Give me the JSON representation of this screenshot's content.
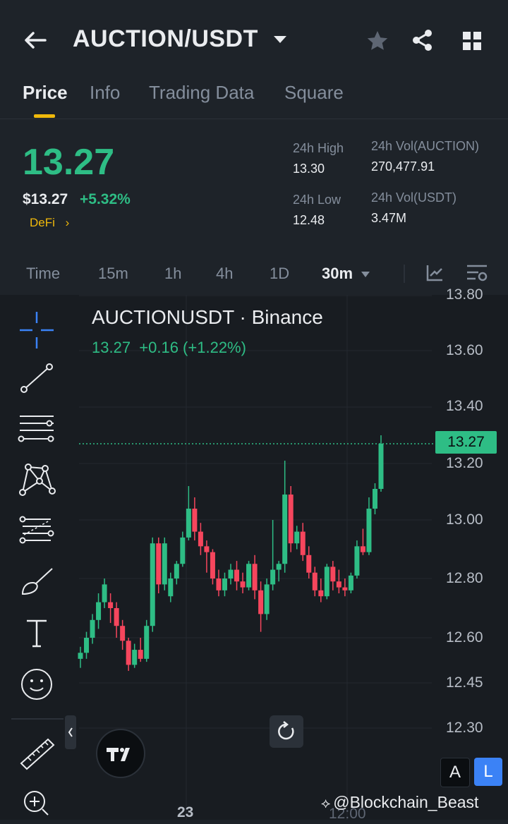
{
  "header": {
    "back_icon": "arrow-left-icon",
    "title": "AUCTION/USDT",
    "dropdown_icon": "caret-down-icon",
    "star_icon": "star-icon",
    "share_icon": "share-icon",
    "grid_icon": "grid-icon"
  },
  "tabs": [
    "Price",
    "Info",
    "Trading Data",
    "Square"
  ],
  "active_tab": "Price",
  "price": {
    "last": "13.27",
    "usd": "$13.27",
    "change": "+5.32%",
    "category": "DeFi",
    "category_arrow": "›"
  },
  "stats": {
    "high_label": "24h High",
    "high": "13.30",
    "low_label": "24h Low",
    "low": "12.48",
    "vol_base_label": "24h Vol(AUCTION)",
    "vol_base": "270,477.91",
    "vol_quote_label": "24h Vol(USDT)",
    "vol_quote": "3.47M"
  },
  "intervals": [
    "Time",
    "15m",
    "1h",
    "4h",
    "1D",
    "30m"
  ],
  "active_interval": "30m",
  "chart": {
    "symbol_line": "AUCTIONUSDT · Binance",
    "ohlc_line": "13.27  +0.16 (+1.22%)",
    "y_ticks": [
      "13.80",
      "13.60",
      "13.40",
      "13.20",
      "13.00",
      "12.80",
      "12.60",
      "12.45",
      "12.30"
    ],
    "last_price_tag": "13.27",
    "x_labels": [
      "23",
      "12:00"
    ],
    "watermark": "@Blockchain_Beast",
    "toggle_a": "A",
    "toggle_l": "L"
  },
  "colors": {
    "up": "#2ebd85",
    "down": "#f6465d",
    "accent": "#f0b90b",
    "bg": "#1e2329"
  },
  "chart_data": {
    "type": "candlestick",
    "y_axis_ticks": [
      13.8,
      13.6,
      13.4,
      13.2,
      13.0,
      12.8,
      12.6,
      12.45,
      12.3
    ],
    "last_price": 13.27,
    "candles": [
      [
        12.53,
        12.57,
        12.5,
        12.55
      ],
      [
        12.55,
        12.62,
        12.53,
        12.6
      ],
      [
        12.6,
        12.68,
        12.58,
        12.66
      ],
      [
        12.66,
        12.75,
        12.63,
        12.72
      ],
      [
        12.72,
        12.8,
        12.7,
        12.78
      ],
      [
        12.72,
        12.75,
        12.65,
        12.7
      ],
      [
        12.7,
        12.72,
        12.6,
        12.64
      ],
      [
        12.64,
        12.66,
        12.56,
        12.59
      ],
      [
        12.59,
        12.6,
        12.49,
        12.51
      ],
      [
        12.51,
        12.58,
        12.5,
        12.56
      ],
      [
        12.56,
        12.6,
        12.52,
        12.53
      ],
      [
        12.53,
        12.66,
        12.52,
        12.64
      ],
      [
        12.64,
        12.94,
        12.62,
        12.92
      ],
      [
        12.92,
        12.94,
        12.75,
        12.78
      ],
      [
        12.78,
        12.94,
        12.76,
        12.92
      ],
      [
        12.74,
        12.82,
        12.72,
        12.8
      ],
      [
        12.8,
        12.86,
        12.78,
        12.85
      ],
      [
        12.85,
        12.96,
        12.84,
        12.94
      ],
      [
        12.94,
        13.12,
        12.93,
        13.04
      ],
      [
        13.04,
        13.08,
        12.93,
        12.96
      ],
      [
        12.96,
        12.99,
        12.88,
        12.91
      ],
      [
        12.91,
        12.93,
        12.82,
        12.89
      ],
      [
        12.89,
        12.9,
        12.78,
        12.8
      ],
      [
        12.8,
        12.83,
        12.74,
        12.76
      ],
      [
        12.76,
        12.82,
        12.74,
        12.8
      ],
      [
        12.8,
        12.85,
        12.78,
        12.83
      ],
      [
        12.83,
        12.86,
        12.76,
        12.79
      ],
      [
        12.79,
        12.82,
        12.75,
        12.77
      ],
      [
        12.77,
        12.86,
        12.76,
        12.85
      ],
      [
        12.85,
        12.88,
        12.73,
        12.76
      ],
      [
        12.76,
        12.79,
        12.62,
        12.68
      ],
      [
        12.68,
        12.8,
        12.66,
        12.78
      ],
      [
        12.78,
        13.0,
        12.76,
        12.83
      ],
      [
        12.83,
        12.86,
        12.79,
        12.85
      ],
      [
        12.85,
        13.21,
        12.82,
        13.09
      ],
      [
        13.09,
        13.12,
        12.89,
        12.92
      ],
      [
        12.92,
        12.98,
        12.9,
        12.96
      ],
      [
        12.96,
        12.99,
        12.86,
        12.88
      ],
      [
        12.88,
        12.91,
        12.8,
        12.82
      ],
      [
        12.82,
        12.84,
        12.74,
        12.76
      ],
      [
        12.76,
        12.8,
        12.72,
        12.74
      ],
      [
        12.74,
        12.85,
        12.73,
        12.84
      ],
      [
        12.84,
        12.86,
        12.76,
        12.79
      ],
      [
        12.79,
        12.83,
        12.75,
        12.77
      ],
      [
        12.77,
        12.8,
        12.74,
        12.76
      ],
      [
        12.76,
        12.82,
        12.75,
        12.81
      ],
      [
        12.81,
        12.93,
        12.8,
        12.91
      ],
      [
        12.91,
        12.97,
        12.88,
        12.89
      ],
      [
        12.89,
        13.08,
        12.88,
        13.04
      ],
      [
        13.04,
        13.13,
        13.02,
        13.11
      ],
      [
        13.11,
        13.3,
        13.1,
        13.27
      ]
    ]
  }
}
